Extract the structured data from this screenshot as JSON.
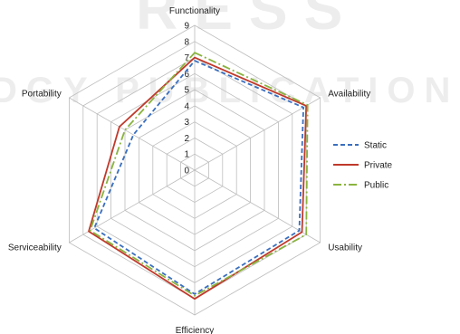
{
  "watermark": {
    "top_text": "RESS",
    "middle_text": "DGY PUBLICATIONS",
    "color": "#c8c8c8"
  },
  "chart_data": {
    "type": "radar",
    "title": "",
    "axes": [
      "Functionality",
      "Availability",
      "Usability",
      "Efficiency",
      "Serviceability",
      "Portability"
    ],
    "range": [
      0,
      9
    ],
    "ticks": [
      0,
      1,
      2,
      3,
      4,
      5,
      6,
      7,
      8,
      9
    ],
    "grid": true,
    "legend_position": "right",
    "series": [
      {
        "name": "Static",
        "values": [
          6.8,
          7.8,
          7.5,
          7.7,
          7.2,
          4.4
        ],
        "color": "#3a6fbf",
        "style": "dashed"
      },
      {
        "name": "Private",
        "values": [
          7.0,
          8.0,
          7.7,
          8.0,
          7.6,
          5.4
        ],
        "color": "#c0392b",
        "style": "solid"
      },
      {
        "name": "Public",
        "values": [
          7.3,
          8.1,
          8.0,
          7.8,
          7.5,
          5.0
        ],
        "color": "#8ab33f",
        "style": "dash-dot"
      }
    ]
  }
}
